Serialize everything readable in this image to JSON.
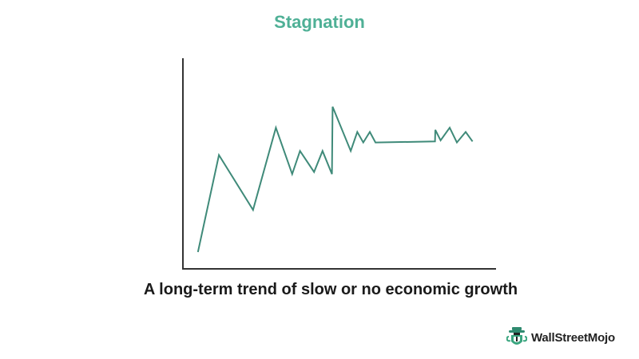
{
  "title": "Stagnation",
  "caption": "A long-term trend of slow or no economic growth",
  "brand": {
    "name": "WallStreetMojo",
    "accent": "#4fb096"
  },
  "colors": {
    "title": "#4fb096",
    "line": "#3f8a79",
    "axis": "#333333",
    "caption": "#1a1a1a"
  },
  "chart_data": {
    "type": "line",
    "title": "Stagnation",
    "xlabel": "",
    "ylabel": "",
    "grid": false,
    "legend": "none",
    "xlim": [
      0,
      100
    ],
    "ylim": [
      0,
      100
    ],
    "series": [
      {
        "x": [
          4.8,
          11.5,
          22.4,
          29.7,
          34.9,
          37.4,
          41.9,
          44.6,
          47.6,
          47.8,
          53.6,
          55.7,
          57.6,
          59.7,
          61.5,
          80.5,
          80.6,
          82.3,
          85.2,
          87.5,
          90.3,
          92.5
        ],
        "y": [
          8,
          54,
          28,
          67,
          45,
          56,
          46,
          56,
          45,
          77,
          56,
          65,
          60,
          65,
          60,
          60.5,
          66,
          61,
          67,
          60,
          65,
          60.5
        ]
      }
    ]
  }
}
